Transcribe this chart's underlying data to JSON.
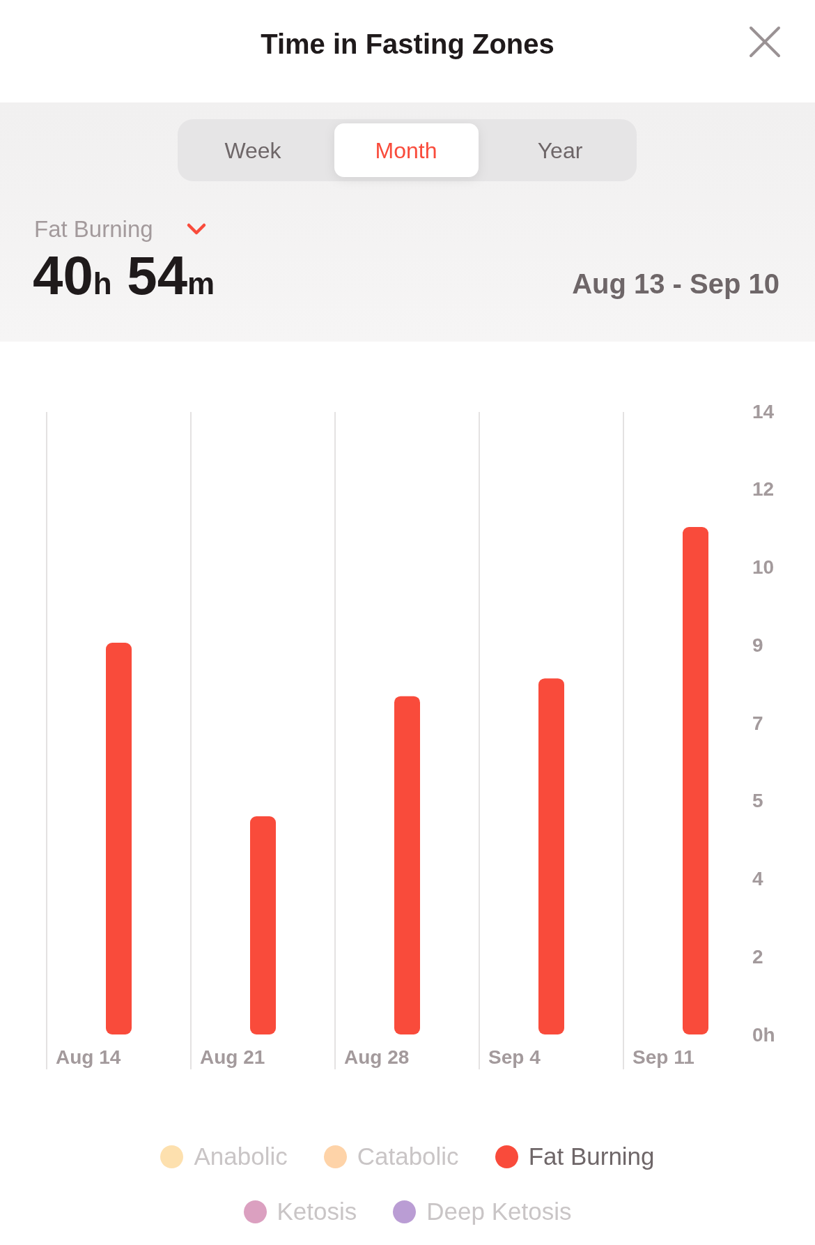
{
  "chart_data": {
    "type": "bar",
    "title": "Time in Fasting Zones",
    "annotations": [
      "Week",
      "Month",
      "Year",
      "Fat Burning",
      "40h 54m",
      "Aug 13 - Sep 10"
    ],
    "categories": [
      "Aug 14",
      "Aug 21",
      "Aug 28",
      "Sep 4",
      "Sep 11"
    ],
    "series": [
      {
        "name": "Anabolic",
        "color": "#fde0ae",
        "values": [
          null,
          null,
          null,
          null,
          null
        ]
      },
      {
        "name": "Catabolic",
        "color": "#fed3a8",
        "values": [
          null,
          null,
          null,
          null,
          null
        ]
      },
      {
        "name": "Fat Burning",
        "color": "#f94b3b",
        "values": [
          8.8,
          4.9,
          7.6,
          8.0,
          11.4
        ]
      },
      {
        "name": "Ketosis",
        "color": "#dba0c0",
        "values": [
          null,
          null,
          null,
          null,
          null
        ]
      },
      {
        "name": "Deep Ketosis",
        "color": "#ba9dd4",
        "values": [
          null,
          null,
          null,
          null,
          null
        ]
      }
    ],
    "ylim": [
      0,
      14
    ],
    "yticks": [
      {
        "value": 0,
        "label": "0h"
      },
      {
        "value": 1.75,
        "label": "2"
      },
      {
        "value": 3.5,
        "label": "4"
      },
      {
        "value": 5.25,
        "label": "5"
      },
      7,
      {
        "value": 8.75,
        "label": "9"
      },
      {
        "value": 10.5,
        "label": "10"
      },
      {
        "value": 12.25,
        "label": "12"
      },
      14
    ],
    "grid": "x",
    "legend": "bottom"
  }
}
